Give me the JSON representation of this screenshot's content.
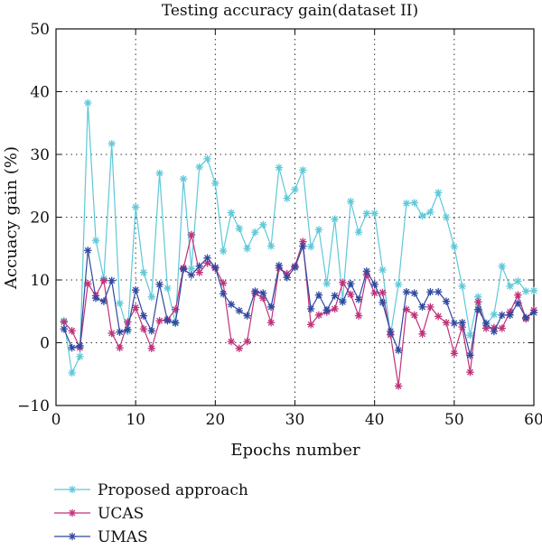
{
  "chart_data": {
    "type": "line",
    "title": "Testing accuracy gain(dataset II)",
    "xlabel": "Epochs number",
    "ylabel": "Accuacy gain (%)",
    "xlim": [
      0,
      60
    ],
    "ylim": [
      -10,
      50
    ],
    "xticks": [
      0,
      10,
      20,
      30,
      40,
      50,
      60
    ],
    "yticks": [
      -10,
      0,
      10,
      20,
      30,
      40,
      50
    ],
    "xtick_labels": [
      "0",
      "10",
      "20",
      "30",
      "40",
      "50",
      "60"
    ],
    "ytick_labels": [
      "−10",
      "0",
      "10",
      "20",
      "30",
      "40",
      "50"
    ],
    "grid": true,
    "legend_position": "below",
    "x": [
      1,
      2,
      3,
      4,
      5,
      6,
      7,
      8,
      9,
      10,
      11,
      12,
      13,
      14,
      15,
      16,
      17,
      18,
      19,
      20,
      21,
      22,
      23,
      24,
      25,
      26,
      27,
      28,
      29,
      30,
      31,
      32,
      33,
      34,
      35,
      36,
      37,
      38,
      39,
      40,
      41,
      42,
      43,
      44,
      45,
      46,
      47,
      48,
      49,
      50,
      51,
      52,
      53,
      54,
      55,
      56,
      57,
      58,
      59,
      60
    ],
    "series": [
      {
        "name": "Proposed approach",
        "color": "#5ec8d8",
        "values": [
          3.5,
          -4.8,
          -2.2,
          38.2,
          16.3,
          10.2,
          31.7,
          6.3,
          1.8,
          21.6,
          11.2,
          7.3,
          27,
          8.7,
          3.1,
          26.1,
          11.8,
          28,
          29.3,
          25.4,
          14.6,
          20.7,
          18.2,
          15,
          17.6,
          18.8,
          15.4,
          27.9,
          23,
          24.4,
          27.5,
          15.3,
          18,
          9.4,
          19.7,
          6.8,
          22.5,
          17.6,
          20.6,
          20.6,
          11.6,
          1.2,
          9.3,
          22.2,
          22.3,
          20.2,
          20.8,
          23.9,
          20,
          15.3,
          9,
          1.2,
          7.3,
          2.8,
          4.5,
          12.2,
          9,
          9.8,
          8.2,
          8.3
        ]
      },
      {
        "name": "UCAS",
        "color": "#c0307a",
        "values": [
          3.3,
          1.9,
          -0.8,
          9.4,
          7.5,
          9.9,
          1.5,
          -0.8,
          3.3,
          5.6,
          2.2,
          -0.9,
          3.5,
          3.7,
          5.3,
          11.9,
          17.2,
          11.2,
          12.7,
          11.9,
          9.5,
          0.2,
          -0.9,
          0.2,
          7.9,
          7.1,
          3.2,
          11.9,
          11,
          12.2,
          16.1,
          2.9,
          4.4,
          4.9,
          5.4,
          9.6,
          7.7,
          4.3,
          10.8,
          7.9,
          8,
          1.3,
          -6.9,
          5.3,
          4.4,
          1.4,
          5.7,
          4.2,
          3.2,
          -1.7,
          2.5,
          -4.7,
          6.5,
          2.3,
          2.4,
          2.3,
          4.9,
          7.6,
          3.8,
          5.2
        ]
      },
      {
        "name": "UMAS",
        "color": "#3048a0",
        "values": [
          2.2,
          -0.8,
          -0.5,
          14.7,
          7.1,
          6.6,
          9.9,
          1.7,
          2.1,
          8.4,
          4.3,
          1.9,
          9.3,
          3.5,
          3.2,
          11.7,
          10.8,
          12.2,
          13.5,
          12,
          7.8,
          6.1,
          5.1,
          4.3,
          8.2,
          7.9,
          5.7,
          12.3,
          10.4,
          12,
          15.4,
          5.4,
          7.6,
          5.2,
          7.5,
          6.5,
          9.4,
          6.9,
          11.4,
          9.3,
          6.4,
          1.8,
          -1.2,
          8.1,
          7.9,
          5.7,
          8.1,
          8.1,
          6.6,
          3.1,
          3.2,
          -2,
          5.3,
          3.1,
          1.8,
          4.4,
          4.4,
          6.3,
          4,
          4.8
        ]
      }
    ]
  }
}
